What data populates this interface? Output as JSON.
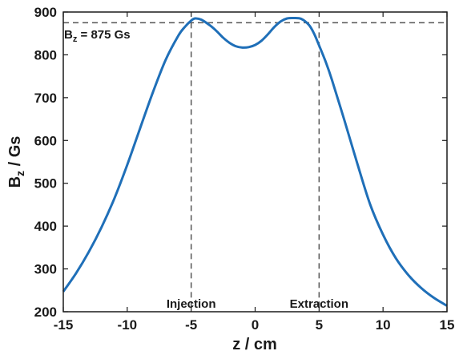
{
  "chart_data": {
    "type": "line",
    "xlabel": "z / cm",
    "ylabel": {
      "main": "B",
      "sub": "z",
      "rest": "  / Gs"
    },
    "xlim": [
      -15,
      15
    ],
    "ylim": [
      200,
      900
    ],
    "x_ticks": [
      "-15",
      "-10",
      "-5",
      "0",
      "5",
      "10",
      "15"
    ],
    "y_ticks": [
      "200",
      "300",
      "400",
      "500",
      "600",
      "700",
      "800",
      "900"
    ],
    "grid": false,
    "series": [
      {
        "color": "#1f6fb8",
        "x": [
          -15,
          -14,
          -13,
          -12,
          -11,
          -10,
          -9,
          -8,
          -7,
          -6,
          -5.5,
          -5,
          -4.7,
          -4.2,
          -3.5,
          -3,
          -2.5,
          -2,
          -1.5,
          -1,
          -0.5,
          0,
          0.5,
          1,
          1.5,
          2,
          2.5,
          3,
          3.6,
          4.2,
          4.6,
          5,
          5.5,
          6,
          7,
          8,
          9,
          10,
          11,
          12,
          13,
          14,
          15
        ],
        "y": [
          247,
          290,
          340,
          398,
          465,
          543,
          628,
          712,
          788,
          845,
          865,
          880,
          885,
          882,
          868,
          855,
          840,
          828,
          820,
          817,
          818,
          823,
          833,
          848,
          865,
          878,
          885,
          886,
          884,
          870,
          850,
          822,
          785,
          742,
          645,
          545,
          450,
          380,
          325,
          285,
          255,
          232,
          214
        ]
      }
    ],
    "reference_lines": {
      "horizontal": {
        "y": 875,
        "color": "#555555",
        "style": "dashed"
      },
      "vertical": [
        {
          "x": -5,
          "label": "Injection"
        },
        {
          "x": 5,
          "label": "Extraction"
        }
      ]
    },
    "annotation": {
      "main": "B",
      "sub": "z",
      "rest": " = 875 Gs"
    }
  }
}
